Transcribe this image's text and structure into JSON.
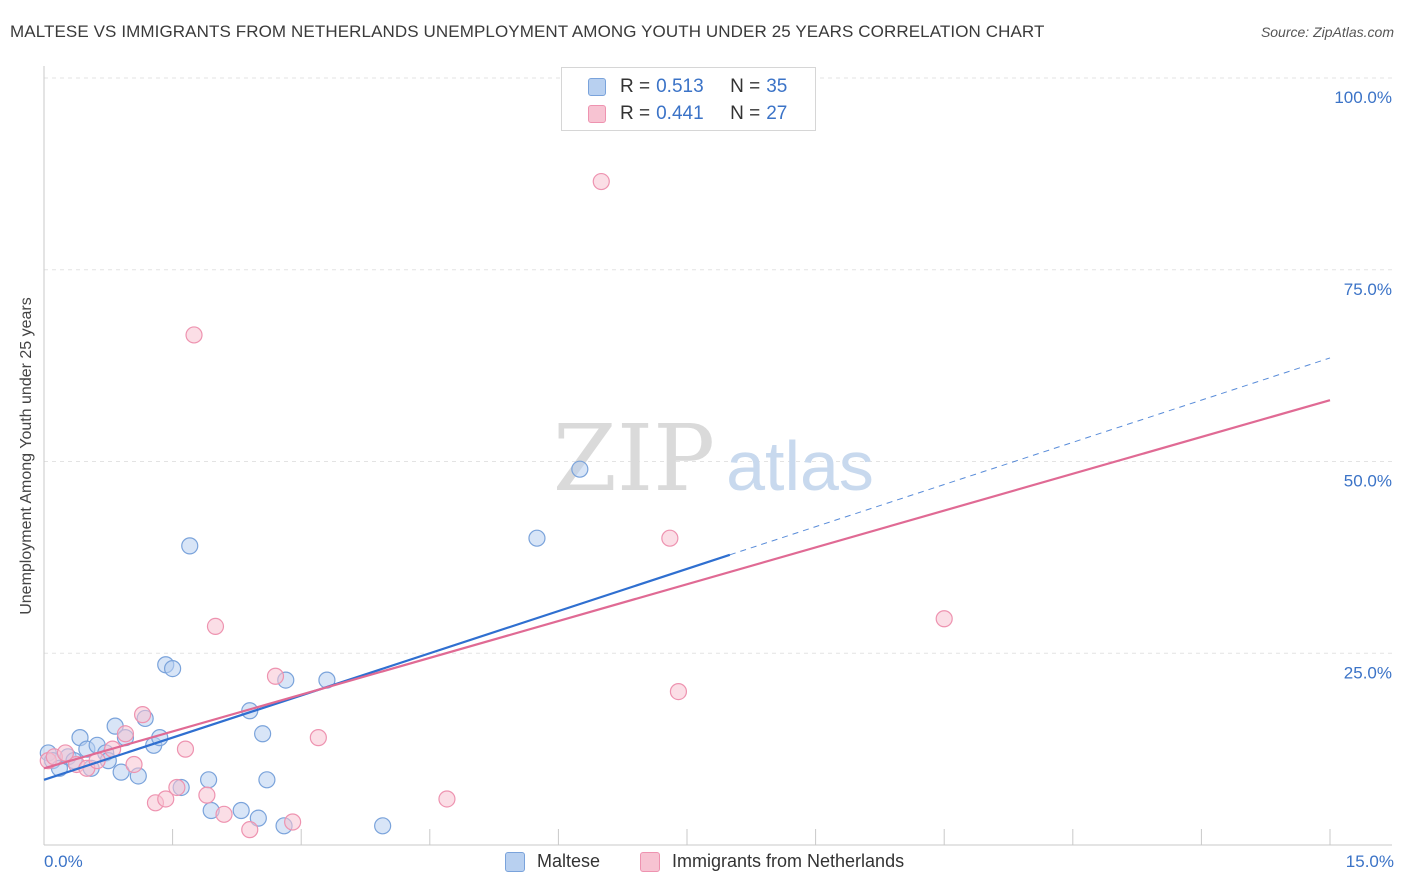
{
  "title": "MALTESE VS IMMIGRANTS FROM NETHERLANDS UNEMPLOYMENT AMONG YOUTH UNDER 25 YEARS CORRELATION CHART",
  "source": "Source: ZipAtlas.com",
  "watermark": {
    "zip": "ZIP",
    "atlas": "atlas"
  },
  "colors": {
    "maltese_fill": "#b8d0f0",
    "maltese_stroke": "#7aa3db",
    "maltese_line": "#2f6fd0",
    "neth_fill": "#f7c3d2",
    "neth_stroke": "#ee93b0",
    "neth_line": "#e06a94",
    "tick_label": "#3b73c7",
    "grid": "#e3e3e3"
  },
  "legend_top": [
    {
      "r_label": "R =",
      "r_value": "0.513",
      "n_label": "N =",
      "n_value": "35"
    },
    {
      "r_label": "R =",
      "r_value": "0.441",
      "n_label": "N =",
      "n_value": "27"
    }
  ],
  "legend_bottom": [
    "Maltese",
    "Immigrants from Netherlands"
  ],
  "chart_data": {
    "type": "scatter",
    "title": "MALTESE VS IMMIGRANTS FROM NETHERLANDS UNEMPLOYMENT AMONG YOUTH UNDER 25 YEARS CORRELATION CHART",
    "xlabel": "",
    "ylabel": "Unemployment Among Youth under 25 years",
    "xlim": [
      0,
      15
    ],
    "ylim": [
      0,
      100
    ],
    "x_tick_labels": [
      "0.0%",
      "15.0%"
    ],
    "y_ticks": [
      25,
      50,
      75,
      100
    ],
    "y_tick_labels": [
      "25.0%",
      "50.0%",
      "75.0%",
      "100.0%"
    ],
    "series": [
      {
        "name": "Maltese",
        "r": 0.513,
        "n": 35,
        "points": [
          [
            0.05,
            12.0
          ],
          [
            0.1,
            11.0
          ],
          [
            0.18,
            10.0
          ],
          [
            0.28,
            11.5
          ],
          [
            0.35,
            11.0
          ],
          [
            0.42,
            14.0
          ],
          [
            0.5,
            12.5
          ],
          [
            0.55,
            10.0
          ],
          [
            0.62,
            13.0
          ],
          [
            0.72,
            12.0
          ],
          [
            0.75,
            11.0
          ],
          [
            0.83,
            15.5
          ],
          [
            0.9,
            9.5
          ],
          [
            0.95,
            14.0
          ],
          [
            1.1,
            9.0
          ],
          [
            1.18,
            16.5
          ],
          [
            1.28,
            13.0
          ],
          [
            1.35,
            14.0
          ],
          [
            1.42,
            23.5
          ],
          [
            1.5,
            23.0
          ],
          [
            1.6,
            7.5
          ],
          [
            1.7,
            39.0
          ],
          [
            1.92,
            8.5
          ],
          [
            1.95,
            4.5
          ],
          [
            2.3,
            4.5
          ],
          [
            2.4,
            17.5
          ],
          [
            2.5,
            3.5
          ],
          [
            2.55,
            14.5
          ],
          [
            2.6,
            8.5
          ],
          [
            2.8,
            2.5
          ],
          [
            2.82,
            21.5
          ],
          [
            3.3,
            21.5
          ],
          [
            3.95,
            2.5
          ],
          [
            5.75,
            40.0
          ],
          [
            6.25,
            49.0
          ]
        ],
        "trend": {
          "x0": 0,
          "y0": 8.5,
          "x_solid_end": 8.0,
          "x1": 15,
          "y1": 63.5
        }
      },
      {
        "name": "Immigrants from Netherlands",
        "r": 0.441,
        "n": 27,
        "points": [
          [
            0.05,
            11.0
          ],
          [
            0.12,
            11.5
          ],
          [
            0.25,
            12.0
          ],
          [
            0.38,
            10.5
          ],
          [
            0.5,
            10.0
          ],
          [
            0.62,
            11.0
          ],
          [
            0.8,
            12.5
          ],
          [
            0.95,
            14.5
          ],
          [
            1.05,
            10.5
          ],
          [
            1.15,
            17.0
          ],
          [
            1.3,
            5.5
          ],
          [
            1.42,
            6.0
          ],
          [
            1.55,
            7.5
          ],
          [
            1.65,
            12.5
          ],
          [
            1.75,
            66.5
          ],
          [
            1.9,
            6.5
          ],
          [
            2.0,
            28.5
          ],
          [
            2.1,
            4.0
          ],
          [
            2.4,
            2.0
          ],
          [
            2.7,
            22.0
          ],
          [
            2.9,
            3.0
          ],
          [
            3.2,
            14.0
          ],
          [
            4.7,
            6.0
          ],
          [
            6.5,
            86.5
          ],
          [
            7.3,
            40.0
          ],
          [
            7.4,
            20.0
          ],
          [
            10.5,
            29.5
          ]
        ],
        "trend": {
          "x0": 0,
          "y0": 10.0,
          "x1": 15,
          "y1": 58.0
        }
      }
    ]
  }
}
